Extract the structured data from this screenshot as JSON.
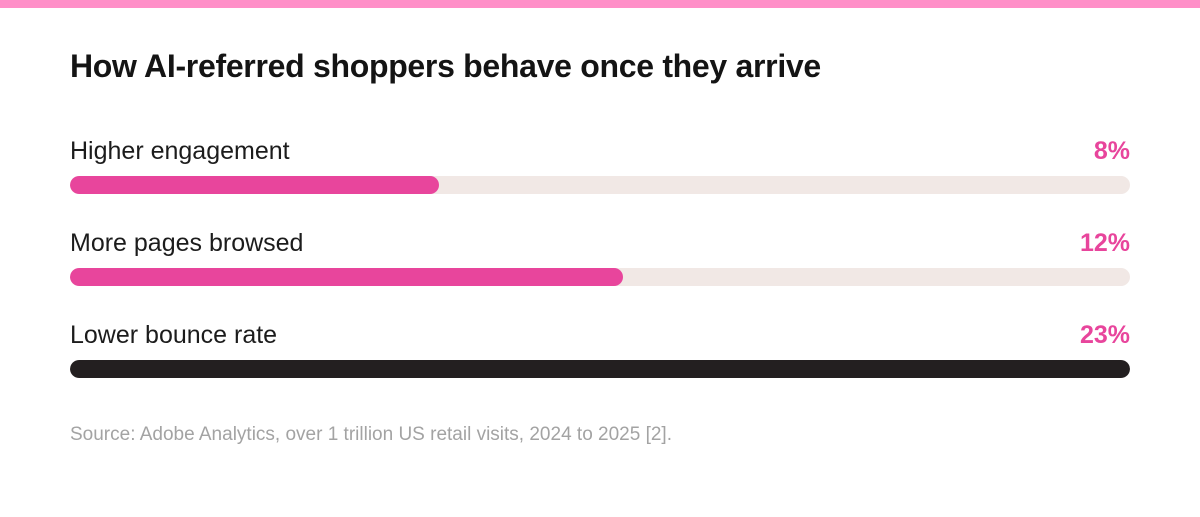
{
  "colors": {
    "stripe": "#ff8fc8",
    "accent": "#e8459c",
    "track": "#f1e8e5",
    "dark": "#231f20"
  },
  "title": "How AI-referred shoppers behave once they arrive",
  "source": "Source: Adobe Analytics, over 1 trillion US retail visits, 2024 to 2025 [2].",
  "chart_data": {
    "type": "bar",
    "orientation": "horizontal",
    "title": "How AI-referred shoppers behave once they arrive",
    "categories": [
      "Higher engagement",
      "More pages browsed",
      "Lower bounce rate"
    ],
    "values": [
      8,
      12,
      23
    ],
    "value_labels": [
      "8%",
      "12%",
      "23%"
    ],
    "bar_colors": [
      "#e8459c",
      "#e8459c",
      "#231f20"
    ],
    "xlim": [
      0,
      23
    ],
    "grid": false,
    "legend": "none"
  }
}
